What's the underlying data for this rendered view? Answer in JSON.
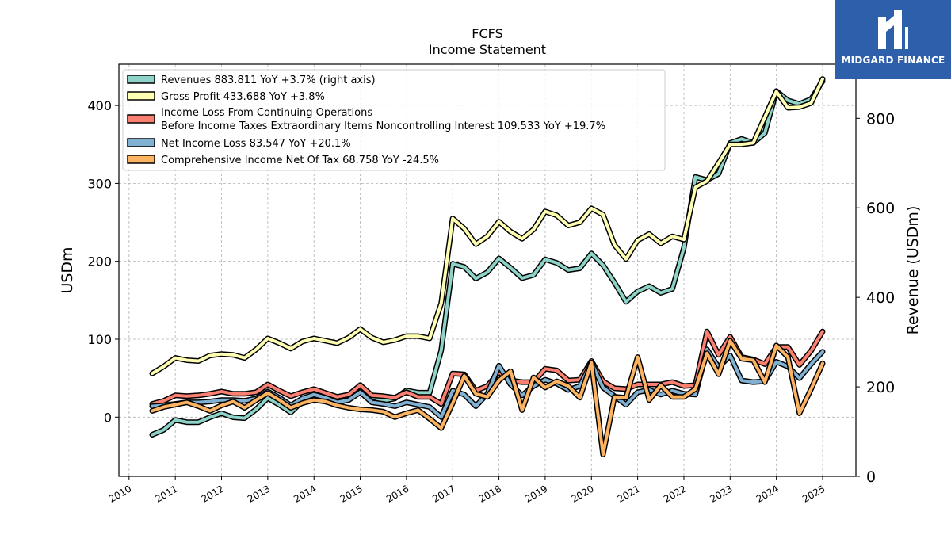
{
  "chart_title": "FCFS",
  "chart_subtitle": "Income Statement",
  "logo_text": "MIDGARD FINANCE",
  "chart_data": {
    "type": "line",
    "title": "FCFS",
    "subtitle": "Income Statement",
    "ylabel": "USDm",
    "ylabel_right": "Revenue (USDm)",
    "ylim": [
      -76,
      453
    ],
    "ylim_right": [
      0,
      921
    ],
    "yticks": [
      0,
      100,
      200,
      300,
      400
    ],
    "yticks_right": [
      0,
      200,
      400,
      600,
      800
    ],
    "xlim": [
      2009.78,
      2025.72
    ],
    "xticks": [
      2010,
      2011,
      2012,
      2013,
      2014,
      2015,
      2016,
      2017,
      2018,
      2019,
      2020,
      2021,
      2022,
      2023,
      2024,
      2025
    ],
    "grid": true,
    "legend_position": "upper-left",
    "x": [
      2010.5,
      2010.75,
      2011.0,
      2011.25,
      2011.5,
      2011.75,
      2012.0,
      2012.25,
      2012.5,
      2012.75,
      2013.0,
      2013.25,
      2013.5,
      2013.75,
      2014.0,
      2014.25,
      2014.5,
      2014.75,
      2015.0,
      2015.25,
      2015.5,
      2015.75,
      2016.0,
      2016.25,
      2016.5,
      2016.75,
      2017.0,
      2017.25,
      2017.5,
      2017.75,
      2018.0,
      2018.25,
      2018.5,
      2018.75,
      2019.0,
      2019.25,
      2019.5,
      2019.75,
      2020.0,
      2020.25,
      2020.5,
      2020.75,
      2021.0,
      2021.25,
      2021.5,
      2021.75,
      2022.0,
      2022.25,
      2022.5,
      2022.75,
      2023.0,
      2023.25,
      2023.5,
      2023.75,
      2024.0,
      2024.25,
      2024.5,
      2024.75,
      2025.0
    ],
    "series": [
      {
        "name": "Revenues  883.811 YoY +3.7% (right axis)",
        "color": "#8dd3c7",
        "axis": "right",
        "values": [
          93,
          104,
          126,
          121,
          121,
          132,
          141,
          132,
          130,
          150,
          175,
          160,
          143,
          168,
          180,
          167,
          165,
          175,
          204,
          178,
          169,
          174,
          192,
          187,
          187,
          281,
          475,
          468,
          442,
          456,
          487,
          466,
          443,
          450,
          485,
          477,
          461,
          465,
          498,
          472,
          433,
          390,
          413,
          425,
          410,
          419,
          511,
          669,
          662,
          676,
          745,
          754,
          745,
          767,
          861,
          840,
          832,
          843,
          883
        ]
      },
      {
        "name": "Gross Profit  433.688 YoY +3.8%",
        "color": "#ffffb3",
        "axis": "left",
        "values": [
          56,
          65,
          76,
          73,
          72,
          79,
          81,
          80,
          76,
          87,
          101,
          95,
          88,
          97,
          101,
          98,
          95,
          102,
          113,
          102,
          96,
          99,
          104,
          104,
          101,
          146,
          255,
          242,
          222,
          232,
          251,
          238,
          229,
          241,
          264,
          259,
          246,
          250,
          268,
          260,
          221,
          203,
          227,
          235,
          223,
          232,
          228,
          295,
          303,
          326,
          350,
          350,
          352,
          385,
          418,
          397,
          398,
          403,
          434
        ]
      },
      {
        "name": "Income Loss From Continuing Operations Before Income Taxes Extraordinary Items Noncontrolling Interest  109.533 YoY +19.7%",
        "color": "#fb8072",
        "axis": "left",
        "values": [
          17,
          21,
          28,
          27,
          28,
          30,
          33,
          30,
          30,
          32,
          42,
          34,
          27,
          32,
          36,
          31,
          26,
          29,
          41,
          28,
          27,
          25,
          32,
          26,
          26,
          17,
          56,
          55,
          34,
          40,
          58,
          47,
          45,
          45,
          62,
          60,
          47,
          48,
          72,
          46,
          37,
          36,
          42,
          42,
          42,
          45,
          40,
          41,
          110,
          80,
          103,
          77,
          74,
          68,
          90,
          90,
          67,
          85,
          110
        ]
      },
      {
        "name": "Net Income Loss  83.547 YoY +20.1%",
        "color": "#80b1d3",
        "axis": "left",
        "values": [
          14,
          15,
          17,
          19,
          19,
          20,
          22,
          22,
          21,
          24,
          33,
          25,
          15,
          24,
          29,
          25,
          19,
          22,
          32,
          19,
          17,
          14,
          19,
          16,
          13,
          0,
          34,
          29,
          14,
          30,
          66,
          42,
          28,
          40,
          48,
          43,
          35,
          40,
          70,
          38,
          27,
          16,
          32,
          35,
          29,
          34,
          30,
          29,
          87,
          64,
          79,
          47,
          45,
          46,
          71,
          65,
          50,
          68,
          84
        ]
      },
      {
        "name": "Comprehensive Income Net Of Tax  68.758 YoY -24.5%",
        "color": "#fdb462",
        "axis": "left",
        "values": [
          8,
          13,
          16,
          19,
          14,
          8,
          15,
          20,
          12,
          22,
          31,
          22,
          12,
          18,
          22,
          20,
          15,
          12,
          10,
          9,
          7,
          0,
          5,
          9,
          -2,
          -14,
          18,
          53,
          30,
          26,
          47,
          59,
          9,
          51,
          38,
          46,
          40,
          25,
          70,
          -48,
          26,
          25,
          77,
          22,
          41,
          26,
          26,
          36,
          82,
          55,
          98,
          75,
          73,
          45,
          92,
          77,
          5,
          36,
          69
        ]
      }
    ]
  }
}
